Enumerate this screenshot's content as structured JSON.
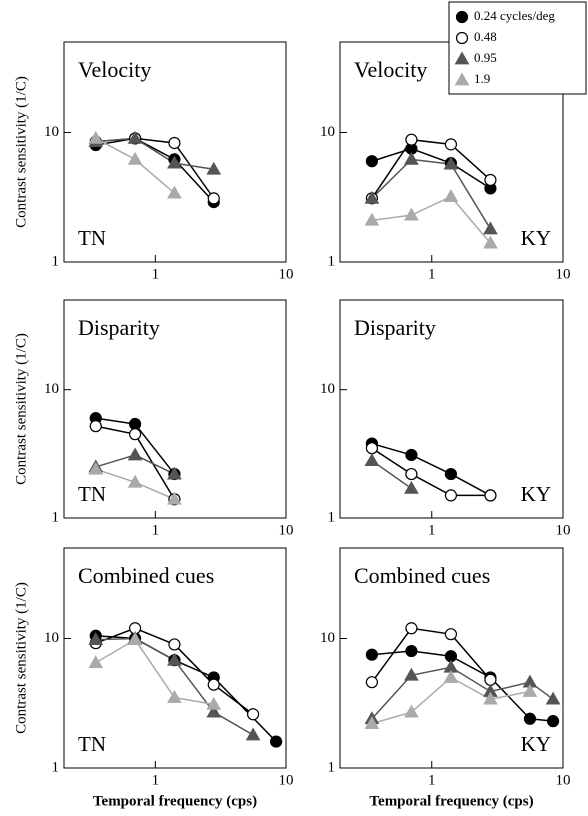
{
  "legend": [
    {
      "name": "0.24 cycles/deg",
      "color": "#000000",
      "marker": "circle"
    },
    {
      "name": "0.48",
      "color": "#ffffff",
      "marker": "circle"
    },
    {
      "name": "0.95",
      "color": "#555555",
      "marker": "triangle"
    },
    {
      "name": "1.9",
      "color": "#aaaaaa",
      "marker": "triangle"
    }
  ],
  "chart_data": [
    {
      "type": "line",
      "title": "Velocity",
      "subject": "TN",
      "subject_corner": "lower left",
      "ylabel": "Contrast sensitivity (1/C)",
      "xscale": "log",
      "yscale": "log",
      "xlim": [
        0.2,
        10
      ],
      "ylim": [
        1,
        50
      ],
      "xticks": [
        1,
        10
      ],
      "yticks": [
        1,
        10
      ],
      "series": [
        {
          "x": [
            0.35,
            0.7,
            1.4,
            2.8
          ],
          "values": [
            8,
            9,
            6.2,
            2.9
          ]
        },
        {
          "x": [
            0.35,
            0.7,
            1.4,
            2.8
          ],
          "values": [
            8.5,
            9,
            8.3,
            3.1
          ]
        },
        {
          "x": [
            0.35,
            0.7,
            1.4,
            2.8
          ],
          "values": [
            8.5,
            9,
            5.8,
            5.2
          ]
        },
        {
          "x": [
            0.35,
            0.7,
            1.4
          ],
          "values": [
            9,
            6.2,
            3.4
          ]
        }
      ]
    },
    {
      "type": "line",
      "title": "Velocity",
      "subject": "KY",
      "subject_corner": "lower right",
      "xscale": "log",
      "yscale": "log",
      "xlim": [
        0.2,
        10
      ],
      "ylim": [
        1,
        50
      ],
      "xticks": [
        1,
        10
      ],
      "yticks": [
        1,
        10
      ],
      "series": [
        {
          "x": [
            0.35,
            0.7,
            1.4,
            2.8
          ],
          "values": [
            6,
            7.5,
            5.8,
            3.7
          ]
        },
        {
          "x": [
            0.35,
            0.7,
            1.4,
            2.8
          ],
          "values": [
            3.1,
            8.8,
            8.1,
            4.3
          ]
        },
        {
          "x": [
            0.35,
            0.7,
            1.4,
            2.8
          ],
          "values": [
            3.1,
            6.2,
            5.7,
            1.8
          ]
        },
        {
          "x": [
            0.35,
            0.7,
            1.4,
            2.8
          ],
          "values": [
            2.1,
            2.3,
            3.2,
            1.4
          ]
        }
      ]
    },
    {
      "type": "line",
      "title": "Disparity",
      "subject": "TN",
      "subject_corner": "lower left",
      "ylabel": "Contrast sensitivity (1/C)",
      "xscale": "log",
      "yscale": "log",
      "xlim": [
        0.2,
        10
      ],
      "ylim": [
        1,
        50
      ],
      "xticks": [
        1,
        10
      ],
      "yticks": [
        1,
        10
      ],
      "series": [
        {
          "x": [
            0.35,
            0.7,
            1.4
          ],
          "values": [
            6,
            5.4,
            2.2
          ]
        },
        {
          "x": [
            0.35,
            0.7,
            1.4
          ],
          "values": [
            5.2,
            4.5,
            1.4
          ]
        },
        {
          "x": [
            0.35,
            0.7,
            1.4
          ],
          "values": [
            2.5,
            3.1,
            2.2
          ]
        },
        {
          "x": [
            0.35,
            0.7,
            1.4
          ],
          "values": [
            2.4,
            1.9,
            1.4
          ]
        }
      ]
    },
    {
      "type": "line",
      "title": "Disparity",
      "subject": "KY",
      "subject_corner": "lower right",
      "xscale": "log",
      "yscale": "log",
      "xlim": [
        0.2,
        10
      ],
      "ylim": [
        1,
        50
      ],
      "xticks": [
        1,
        10
      ],
      "yticks": [
        1,
        10
      ],
      "series": [
        {
          "x": [
            0.35,
            0.7,
            1.4,
            2.8
          ],
          "values": [
            3.8,
            3.1,
            2.2,
            1.5
          ]
        },
        {
          "x": [
            0.35,
            0.7,
            1.4,
            2.8
          ],
          "values": [
            3.5,
            2.2,
            1.5,
            1.5
          ]
        },
        {
          "x": [
            0.35,
            0.7
          ],
          "values": [
            2.8,
            1.7
          ]
        },
        {
          "x": [],
          "values": []
        }
      ]
    },
    {
      "type": "line",
      "title": "Combined cues",
      "subject": "TN",
      "subject_corner": "lower left",
      "ylabel": "Contrast sensitivity (1/C)",
      "xlabel": "Temporal frequency (cps)",
      "xscale": "log",
      "yscale": "log",
      "xlim": [
        0.2,
        10
      ],
      "ylim": [
        1,
        50
      ],
      "xticks": [
        1,
        10
      ],
      "yticks": [
        1,
        10
      ],
      "series": [
        {
          "x": [
            0.35,
            0.7,
            1.4,
            2.8,
            8.4
          ],
          "values": [
            10.5,
            10,
            6.8,
            5,
            1.6
          ]
        },
        {
          "x": [
            0.35,
            0.7,
            1.4,
            2.8,
            5.6
          ],
          "values": [
            9.2,
            12,
            9,
            4.4,
            2.6
          ]
        },
        {
          "x": [
            0.35,
            0.7,
            1.4,
            2.8,
            5.6
          ],
          "values": [
            9.8,
            10,
            6.8,
            2.7,
            1.8
          ]
        },
        {
          "x": [
            0.35,
            0.7,
            1.4,
            2.8
          ],
          "values": [
            6.5,
            9.8,
            3.5,
            3.1
          ]
        }
      ]
    },
    {
      "type": "line",
      "title": "Combined cues",
      "subject": "KY",
      "subject_corner": "lower right",
      "xlabel": "Temporal frequency (cps)",
      "xscale": "log",
      "yscale": "log",
      "xlim": [
        0.2,
        10
      ],
      "ylim": [
        1,
        50
      ],
      "xticks": [
        1,
        10
      ],
      "yticks": [
        1,
        10
      ],
      "series": [
        {
          "x": [
            0.35,
            0.7,
            1.4,
            2.8,
            5.6,
            8.4
          ],
          "values": [
            7.5,
            8,
            7.3,
            5,
            2.4,
            2.3
          ]
        },
        {
          "x": [
            0.35,
            0.7,
            1.4,
            2.8
          ],
          "values": [
            4.6,
            12,
            10.8,
            4.8
          ]
        },
        {
          "x": [
            0.35,
            0.7,
            1.4,
            2.8,
            5.6,
            8.4
          ],
          "values": [
            2.4,
            5.2,
            6,
            3.9,
            4.6,
            3.4
          ]
        },
        {
          "x": [
            0.35,
            0.7,
            1.4,
            2.8,
            5.6
          ],
          "values": [
            2.2,
            2.7,
            5,
            3.4,
            3.9
          ]
        }
      ]
    }
  ]
}
